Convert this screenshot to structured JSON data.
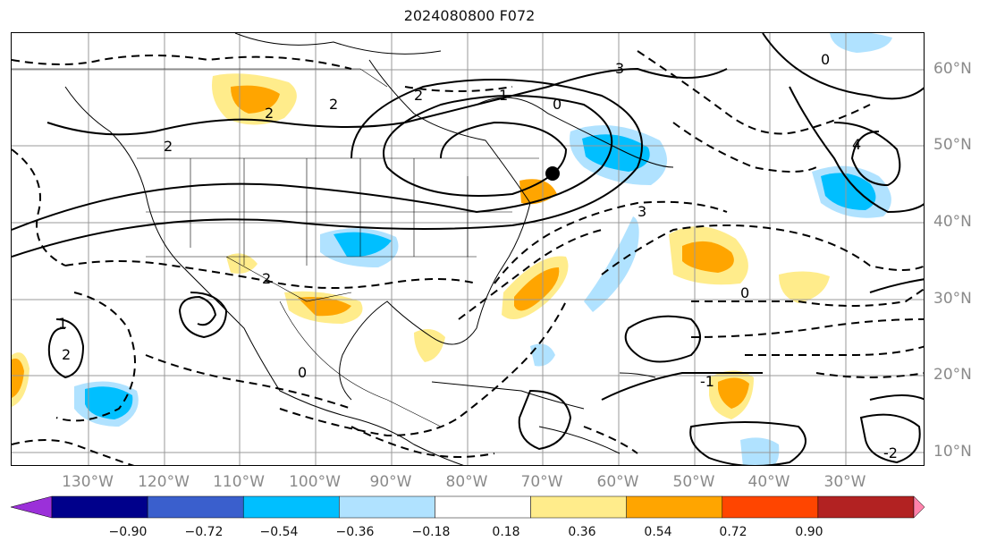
{
  "title": "2024080800 F072",
  "map": {
    "longitude_labels": [
      "130°W",
      "120°W",
      "110°W",
      "100°W",
      "90°W",
      "80°W",
      "70°W",
      "60°W",
      "50°W",
      "40°W",
      "30°W"
    ],
    "latitude_labels": [
      "60°N",
      "50°N",
      "40°N",
      "30°N",
      "20°N",
      "10°N"
    ],
    "contour_labels": [
      "2",
      "2",
      "2",
      "1",
      "0",
      "0",
      "2",
      "3",
      "4",
      "3",
      "0",
      "2",
      "1",
      "-1",
      "-2",
      "0",
      "2"
    ]
  },
  "colorbar": {
    "ticks": [
      "−0.90",
      "−0.72",
      "−0.54",
      "−0.36",
      "−0.18",
      "0.18",
      "0.36",
      "0.54",
      "0.72",
      "0.90"
    ],
    "colors": [
      "#9b30d9",
      "#00008b",
      "#3a5fcd",
      "#00bfff",
      "#b0e2ff",
      "#ffffff",
      "#ffec8b",
      "#ffa500",
      "#ff4500",
      "#b22222",
      "#ff82ab"
    ]
  }
}
